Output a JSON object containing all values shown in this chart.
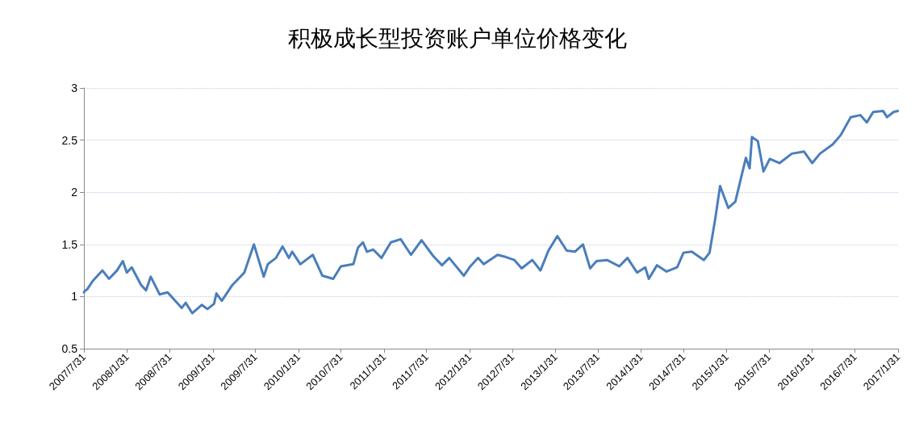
{
  "chart_data": {
    "type": "line",
    "title": "积极成长型投资账户单位价格变化",
    "x": [
      "2007-07-31",
      "2007-08-03",
      "2007-08-14",
      "2007-09-07",
      "2007-10-18",
      "2007-11-15",
      "2007-12-19",
      "2008-01-13",
      "2008-01-30",
      "2008-02-20",
      "2008-03-31",
      "2008-04-21",
      "2008-05-11",
      "2008-06-18",
      "2008-07-22",
      "2008-09-20",
      "2008-10-07",
      "2008-11-04",
      "2008-12-15",
      "2009-01-08",
      "2009-02-05",
      "2009-02-15",
      "2009-03-10",
      "2009-04-24",
      "2009-06-14",
      "2009-07-25",
      "2009-09-05",
      "2009-09-22",
      "2009-10-27",
      "2009-11-24",
      "2009-12-21",
      "2010-01-04",
      "2010-02-08",
      "2010-04-02",
      "2010-05-13",
      "2010-06-28",
      "2010-07-31",
      "2010-09-22",
      "2010-10-12",
      "2010-11-02",
      "2010-11-19",
      "2010-12-16",
      "2011-01-20",
      "2011-03-01",
      "2011-04-12",
      "2011-05-26",
      "2011-07-10",
      "2011-08-28",
      "2011-10-05",
      "2011-11-05",
      "2012-01-06",
      "2012-02-03",
      "2012-03-07",
      "2012-03-31",
      "2012-05-29",
      "2012-07-02",
      "2012-08-09",
      "2012-09-09",
      "2012-10-24",
      "2012-11-28",
      "2013-01-01",
      "2013-02-08",
      "2013-03-20",
      "2013-04-24",
      "2013-05-28",
      "2013-06-28",
      "2013-07-25",
      "2013-09-08",
      "2013-10-30",
      "2013-12-04",
      "2014-01-14",
      "2014-02-18",
      "2014-03-05",
      "2014-04-09",
      "2014-05-20",
      "2014-07-04",
      "2014-07-31",
      "2014-09-04",
      "2014-10-26",
      "2014-11-19",
      "2014-12-13",
      "2015-01-03",
      "2015-02-07",
      "2015-03-09",
      "2015-04-23",
      "2015-05-09",
      "2015-05-19",
      "2015-06-13",
      "2015-07-07",
      "2015-08-03",
      "2015-09-14",
      "2015-11-05",
      "2015-12-27",
      "2016-01-31",
      "2016-03-04",
      "2016-04-28",
      "2016-06-01",
      "2016-07-13",
      "2016-08-23",
      "2016-09-20",
      "2016-10-17",
      "2016-11-28",
      "2016-12-15",
      "2017-01-12",
      "2017-01-30"
    ],
    "series": [
      {
        "color": "#4a7ebb",
        "values": [
          1.04,
          1.05,
          1.07,
          1.15,
          1.25,
          1.17,
          1.25,
          1.34,
          1.23,
          1.28,
          1.11,
          1.06,
          1.19,
          1.02,
          1.04,
          0.89,
          0.94,
          0.84,
          0.92,
          0.88,
          0.93,
          1.03,
          0.96,
          1.11,
          1.23,
          1.5,
          1.19,
          1.31,
          1.37,
          1.48,
          1.37,
          1.43,
          1.31,
          1.4,
          1.2,
          1.17,
          1.29,
          1.31,
          1.47,
          1.52,
          1.43,
          1.45,
          1.37,
          1.52,
          1.55,
          1.4,
          1.54,
          1.39,
          1.3,
          1.37,
          1.2,
          1.29,
          1.37,
          1.31,
          1.4,
          1.38,
          1.35,
          1.27,
          1.35,
          1.25,
          1.44,
          1.58,
          1.44,
          1.43,
          1.5,
          1.27,
          1.34,
          1.35,
          1.29,
          1.37,
          1.23,
          1.28,
          1.17,
          1.3,
          1.24,
          1.28,
          1.42,
          1.43,
          1.35,
          1.42,
          1.74,
          2.06,
          1.85,
          1.91,
          2.33,
          2.23,
          2.53,
          2.49,
          2.2,
          2.32,
          2.28,
          2.37,
          2.39,
          2.28,
          2.37,
          2.46,
          2.55,
          2.72,
          2.74,
          2.67,
          2.77,
          2.78,
          2.72,
          2.77,
          2.78
        ]
      }
    ],
    "xlim": [
      "2007-07-31",
      "2017-01-31"
    ],
    "xticks": [
      {
        "value": "2007-07-31",
        "label": "2007/7/31"
      },
      {
        "value": "2008-01-31",
        "label": "2008/1/31"
      },
      {
        "value": "2008-07-31",
        "label": "2008/7/31"
      },
      {
        "value": "2009-01-31",
        "label": "2009/1/31"
      },
      {
        "value": "2009-07-31",
        "label": "2009/7/31"
      },
      {
        "value": "2010-01-31",
        "label": "2010/1/31"
      },
      {
        "value": "2010-07-31",
        "label": "2010/7/31"
      },
      {
        "value": "2011-01-31",
        "label": "2011/1/31"
      },
      {
        "value": "2011-07-31",
        "label": "2011/7/31"
      },
      {
        "value": "2012-01-31",
        "label": "2012/1/31"
      },
      {
        "value": "2012-07-31",
        "label": "2012/7/31"
      },
      {
        "value": "2013-01-31",
        "label": "2013/1/31"
      },
      {
        "value": "2013-07-31",
        "label": "2013/7/31"
      },
      {
        "value": "2014-01-31",
        "label": "2014/1/31"
      },
      {
        "value": "2014-07-31",
        "label": "2014/7/31"
      },
      {
        "value": "2015-01-31",
        "label": "2015/1/31"
      },
      {
        "value": "2015-07-31",
        "label": "2015/7/31"
      },
      {
        "value": "2016-01-31",
        "label": "2016/1/31"
      },
      {
        "value": "2016-07-31",
        "label": "2016/7/31"
      },
      {
        "value": "2017-01-31",
        "label": "2017/1/31"
      }
    ],
    "ylim": [
      0.5,
      3
    ],
    "yticks": [
      0.5,
      1,
      1.5,
      2,
      2.5,
      3
    ],
    "grid": "y",
    "marker": "none",
    "line_style": "solid"
  }
}
